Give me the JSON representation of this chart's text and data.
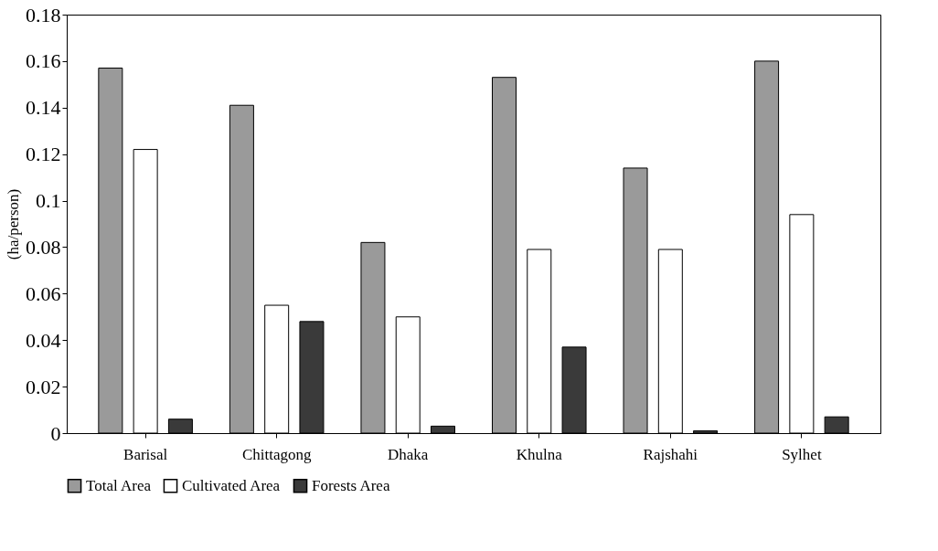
{
  "chart_data": {
    "type": "bar",
    "ylabel": "(ha/person)",
    "categories": [
      "Barisal",
      "Chittagong",
      "Dhaka",
      "Khulna",
      "Rajshahi",
      "Sylhet"
    ],
    "series": [
      {
        "name": "Total Area",
        "color": "#9a9a9a",
        "values": [
          0.157,
          0.141,
          0.082,
          0.153,
          0.114,
          0.16
        ]
      },
      {
        "name": "Cultivated Area",
        "color": "#ffffff",
        "values": [
          0.122,
          0.055,
          0.05,
          0.079,
          0.079,
          0.094
        ]
      },
      {
        "name": "Forests Area",
        "color": "#3a3a3a",
        "values": [
          0.006,
          0.048,
          0.003,
          0.037,
          0.001,
          0.007
        ]
      }
    ],
    "ylim": [
      0,
      0.18
    ],
    "yticks": [
      0,
      0.02,
      0.04,
      0.06,
      0.08,
      0.1,
      0.12,
      0.14,
      0.16,
      0.18
    ],
    "grid": false,
    "legend": "bottom"
  }
}
